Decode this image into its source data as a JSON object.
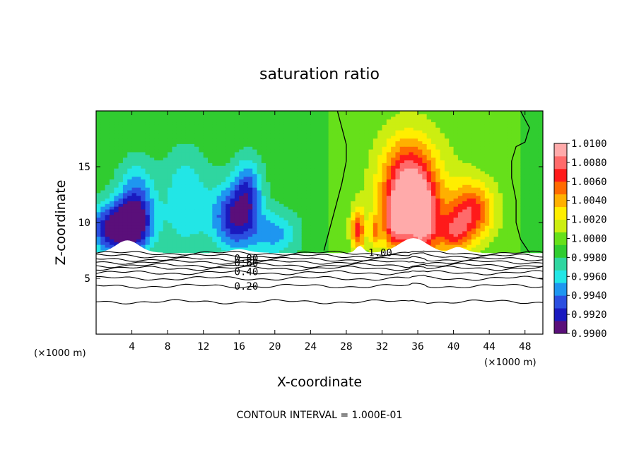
{
  "chart_data": {
    "type": "heatmap",
    "title": "saturation ratio",
    "xlabel": "X-coordinate",
    "ylabel": "Z-coordinate",
    "x_unit_left": "(×1000 m)",
    "x_unit_right": "(×1000 m)",
    "xlim": [
      0,
      50
    ],
    "ylim": [
      0,
      20
    ],
    "x_ticks": [
      4,
      8,
      12,
      16,
      20,
      24,
      28,
      32,
      36,
      40,
      44,
      48
    ],
    "y_ticks": [
      5,
      10,
      15
    ],
    "footer": "CONTOUR INTERVAL = 1.000E-01",
    "colorbar": {
      "min": 0.99,
      "max": 1.01,
      "tick_labels": [
        "1.0100",
        "1.0080",
        "1.0060",
        "1.0040",
        "1.0020",
        "1.0000",
        "0.9980",
        "0.9960",
        "0.9940",
        "0.9920",
        "0.9900"
      ],
      "colors": [
        "#5a0f7a",
        "#1a1abf",
        "#2b4fe0",
        "#1e96f0",
        "#22e6e6",
        "#2fd6a0",
        "#30cc30",
        "#66e01a",
        "#ccee11",
        "#ffee00",
        "#ffb000",
        "#ff6a00",
        "#ff1a1a",
        "#ff6a6a",
        "#ffaaaa"
      ]
    },
    "contour_labels": [
      {
        "text": "1.00",
        "x": 31.8,
        "z": 7.3
      },
      {
        "text": "0.80",
        "x": 16.8,
        "z": 6.8
      },
      {
        "text": "0.60",
        "x": 16.8,
        "z": 6.4
      },
      {
        "text": "0.40",
        "x": 16.8,
        "z": 5.6
      },
      {
        "text": "0.20",
        "x": 16.8,
        "z": 4.3
      }
    ],
    "contour_levels_below": [
      1.0,
      0.9,
      0.8,
      0.7,
      0.6,
      0.5,
      0.4,
      0.3,
      0.2,
      0.1
    ],
    "contour_z_below": [
      7.25,
      7.0,
      6.7,
      6.45,
      6.15,
      5.9,
      5.5,
      5.0,
      4.3,
      2.9
    ],
    "field_base_z": 7.3,
    "blobs_dry": [
      {
        "x": 2.5,
        "z": 9.5,
        "sx": 3.0,
        "sz": 2.2,
        "a": 1.0
      },
      {
        "x": 4.5,
        "z": 11.5,
        "sx": 2.0,
        "sz": 3.5,
        "a": 0.6
      },
      {
        "x": 10.0,
        "z": 12.0,
        "sx": 2.5,
        "sz": 4.5,
        "a": 0.35
      },
      {
        "x": 15.5,
        "z": 10.5,
        "sx": 2.5,
        "sz": 3.0,
        "a": 0.75
      },
      {
        "x": 17.0,
        "z": 13.0,
        "sx": 1.5,
        "sz": 3.0,
        "a": 0.45
      },
      {
        "x": 20.0,
        "z": 9.0,
        "sx": 2.5,
        "sz": 2.0,
        "a": 0.4
      }
    ],
    "blobs_wet": [
      {
        "x": 35.0,
        "z": 13.5,
        "sx": 3.0,
        "sz": 4.0,
        "a": 0.8
      },
      {
        "x": 36.5,
        "z": 10.0,
        "sx": 1.8,
        "sz": 3.0,
        "a": 0.7
      },
      {
        "x": 33.5,
        "z": 10.0,
        "sx": 1.5,
        "sz": 2.5,
        "a": 0.6
      },
      {
        "x": 29.3,
        "z": 9.3,
        "sx": 0.8,
        "sz": 2.0,
        "a": 0.6
      },
      {
        "x": 31.2,
        "z": 9.2,
        "sx": 0.6,
        "sz": 1.5,
        "a": 0.35
      },
      {
        "x": 42.0,
        "z": 11.0,
        "sx": 2.5,
        "sz": 2.5,
        "a": 0.6
      },
      {
        "x": 40.0,
        "z": 9.0,
        "sx": 1.8,
        "sz": 1.8,
        "a": 0.45
      }
    ],
    "saturation_line_1": [
      [
        25.5,
        7.5
      ],
      [
        26.0,
        9.0
      ],
      [
        26.5,
        10.5
      ],
      [
        27.0,
        12.0
      ],
      [
        27.5,
        13.5
      ],
      [
        28.0,
        15.5
      ],
      [
        28.0,
        17.0
      ],
      [
        27.5,
        18.5
      ],
      [
        27.0,
        20.0
      ]
    ],
    "saturation_line_2": [
      [
        48.5,
        7.3
      ],
      [
        47.5,
        8.5
      ],
      [
        47.0,
        10.0
      ],
      [
        47.0,
        12.0
      ],
      [
        46.5,
        14.0
      ],
      [
        46.5,
        15.5
      ],
      [
        47.0,
        16.8
      ],
      [
        48.0,
        17.2
      ],
      [
        48.5,
        18.5
      ],
      [
        47.5,
        20.0
      ]
    ]
  }
}
